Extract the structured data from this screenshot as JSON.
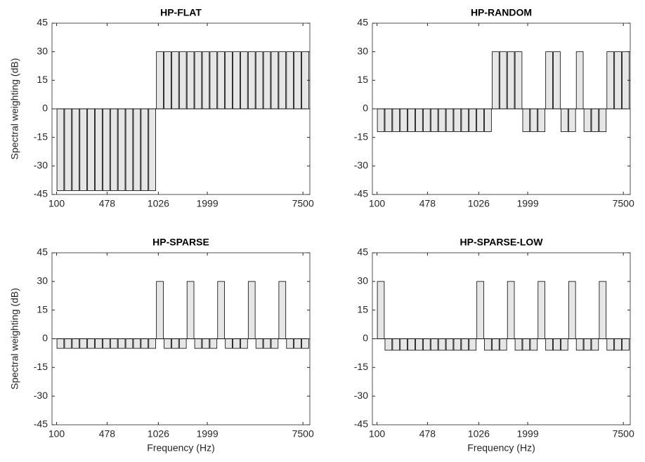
{
  "chart_data": [
    {
      "type": "bar",
      "title": "HP-FLAT",
      "ylabel": "Spectral weighting (dB)",
      "categories": [
        null,
        null,
        null,
        null,
        null,
        null,
        null,
        null,
        null,
        null,
        null,
        null,
        null,
        null,
        null,
        null,
        null,
        null,
        null,
        null,
        null,
        null,
        null,
        null,
        null,
        null,
        null,
        null,
        null,
        null,
        null,
        null,
        null
      ],
      "values": [
        -43,
        -43,
        -43,
        -43,
        -43,
        -43,
        -43,
        -43,
        -43,
        -43,
        -43,
        -43,
        -43,
        30,
        30,
        30,
        30,
        30,
        30,
        30,
        30,
        30,
        30,
        30,
        30,
        30,
        30,
        30,
        30,
        30,
        30,
        30,
        30
      ],
      "color": "#e6e6e6",
      "edgecolor": "#000000",
      "xlim": [
        -0.6,
        33.1
      ],
      "xticks": [
        {
          "value": 0,
          "label": "100"
        },
        {
          "value": 6.6,
          "label": "478"
        },
        {
          "value": 13.3,
          "label": "1026"
        },
        {
          "value": 19.7,
          "label": "1999"
        },
        {
          "value": 32.2,
          "label": "7500"
        }
      ],
      "ylim": [
        -45,
        45
      ],
      "yticks": [
        -45,
        -30,
        -15,
        0,
        15,
        30,
        45
      ],
      "grid": false
    },
    {
      "type": "bar",
      "title": "HP-RANDOM",
      "categories": [
        null,
        null,
        null,
        null,
        null,
        null,
        null,
        null,
        null,
        null,
        null,
        null,
        null,
        null,
        null,
        null,
        null,
        null,
        null,
        null,
        null,
        null,
        null,
        null,
        null,
        null,
        null,
        null,
        null,
        null,
        null,
        null,
        null
      ],
      "values": [
        -12,
        -12,
        -12,
        -12,
        -12,
        -12,
        -12,
        -12,
        -12,
        -12,
        -12,
        -12,
        -12,
        -12,
        -12,
        30,
        30,
        30,
        30,
        -12,
        -12,
        -12,
        30,
        30,
        -12,
        -12,
        30,
        -12,
        -12,
        -12,
        30,
        30,
        30
      ],
      "color": "#e6e6e6",
      "edgecolor": "#000000",
      "xlim": [
        -0.6,
        33.1
      ],
      "xticks": [
        {
          "value": 0,
          "label": "100"
        },
        {
          "value": 6.6,
          "label": "478"
        },
        {
          "value": 13.3,
          "label": "1026"
        },
        {
          "value": 19.7,
          "label": "1999"
        },
        {
          "value": 32.2,
          "label": "7500"
        }
      ],
      "ylim": [
        -45,
        45
      ],
      "yticks": [
        -45,
        -30,
        -15,
        0,
        15,
        30,
        45
      ],
      "grid": false
    },
    {
      "type": "bar",
      "title": "HP-SPARSE",
      "ylabel": "Spectral weighting (dB)",
      "xlabel": "Frequency (Hz)",
      "categories": [
        null,
        null,
        null,
        null,
        null,
        null,
        null,
        null,
        null,
        null,
        null,
        null,
        null,
        null,
        null,
        null,
        null,
        null,
        null,
        null,
        null,
        null,
        null,
        null,
        null,
        null,
        null,
        null,
        null,
        null,
        null,
        null,
        null
      ],
      "values": [
        -5,
        -5,
        -5,
        -5,
        -5,
        -5,
        -5,
        -5,
        -5,
        -5,
        -5,
        -5,
        -5,
        30,
        -5,
        -5,
        -5,
        30,
        -5,
        -5,
        -5,
        30,
        -5,
        -5,
        -5,
        30,
        -5,
        -5,
        -5,
        30,
        -5,
        -5,
        -5
      ],
      "color": "#e6e6e6",
      "edgecolor": "#000000",
      "xlim": [
        -0.6,
        33.1
      ],
      "xticks": [
        {
          "value": 0,
          "label": "100"
        },
        {
          "value": 6.6,
          "label": "478"
        },
        {
          "value": 13.3,
          "label": "1026"
        },
        {
          "value": 19.7,
          "label": "1999"
        },
        {
          "value": 32.2,
          "label": "7500"
        }
      ],
      "ylim": [
        -45,
        45
      ],
      "yticks": [
        -45,
        -30,
        -15,
        0,
        15,
        30,
        45
      ],
      "grid": false
    },
    {
      "type": "bar",
      "title": "HP-SPARSE-LOW",
      "xlabel": "Frequency (Hz)",
      "categories": [
        null,
        null,
        null,
        null,
        null,
        null,
        null,
        null,
        null,
        null,
        null,
        null,
        null,
        null,
        null,
        null,
        null,
        null,
        null,
        null,
        null,
        null,
        null,
        null,
        null,
        null,
        null,
        null,
        null,
        null,
        null,
        null,
        null
      ],
      "values": [
        30,
        -6,
        -6,
        -6,
        -6,
        -6,
        -6,
        -6,
        -6,
        -6,
        -6,
        -6,
        -6,
        30,
        -6,
        -6,
        -6,
        30,
        -6,
        -6,
        -6,
        30,
        -6,
        -6,
        -6,
        30,
        -6,
        -6,
        -6,
        30,
        -6,
        -6,
        -6
      ],
      "color": "#e6e6e6",
      "edgecolor": "#000000",
      "xlim": [
        -0.6,
        33.1
      ],
      "xticks": [
        {
          "value": 0,
          "label": "100"
        },
        {
          "value": 6.6,
          "label": "478"
        },
        {
          "value": 13.3,
          "label": "1026"
        },
        {
          "value": 19.7,
          "label": "1999"
        },
        {
          "value": 32.2,
          "label": "7500"
        }
      ],
      "ylim": [
        -45,
        45
      ],
      "yticks": [
        -45,
        -30,
        -15,
        0,
        15,
        30,
        45
      ],
      "grid": false
    }
  ]
}
